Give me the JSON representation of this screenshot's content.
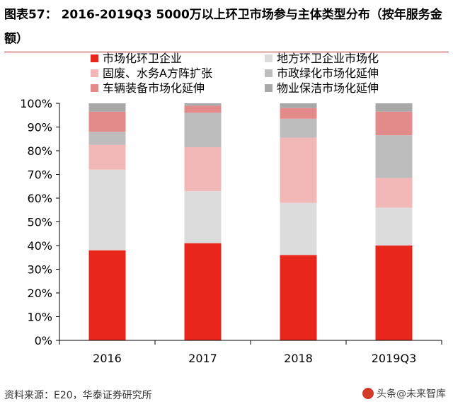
{
  "figure": {
    "title": "图表57： 2016-2019Q3 5000万以上环卫市场参与主体类型分布（按年服务金额）",
    "source": "资料来源：E20，华泰证券研究所",
    "watermark": "头条@未来智库"
  },
  "chart_data": {
    "type": "bar",
    "stacked": true,
    "categories": [
      "2016",
      "2017",
      "2018",
      "2019Q3"
    ],
    "ylim": [
      0,
      100
    ],
    "yticks": [
      "0%",
      "10%",
      "20%",
      "30%",
      "40%",
      "50%",
      "60%",
      "70%",
      "80%",
      "90%",
      "100%"
    ],
    "xlabel": "",
    "ylabel": "",
    "legend_position": "top",
    "series": [
      {
        "name": "市场化环卫企业",
        "color": "#e8261c",
        "values": [
          38,
          41,
          36,
          40
        ]
      },
      {
        "name": "地方环卫企业市场化",
        "color": "#dcdcdc",
        "values": [
          34,
          22,
          22,
          16
        ]
      },
      {
        "name": "固废、水务A方阵扩张",
        "color": "#f2b8b8",
        "values": [
          10.5,
          18.5,
          27.5,
          12.5
        ]
      },
      {
        "name": "市政绿化市场化延伸",
        "color": "#bdbdbd",
        "values": [
          5.5,
          14.5,
          8,
          18
        ]
      },
      {
        "name": "车辆装备市场化延伸",
        "color": "#e38b8b",
        "values": [
          8.5,
          3,
          4.5,
          10
        ]
      },
      {
        "name": "物业保洁市场化延伸",
        "color": "#a8a8a8",
        "values": [
          3.5,
          1,
          2,
          3.5
        ]
      }
    ]
  }
}
